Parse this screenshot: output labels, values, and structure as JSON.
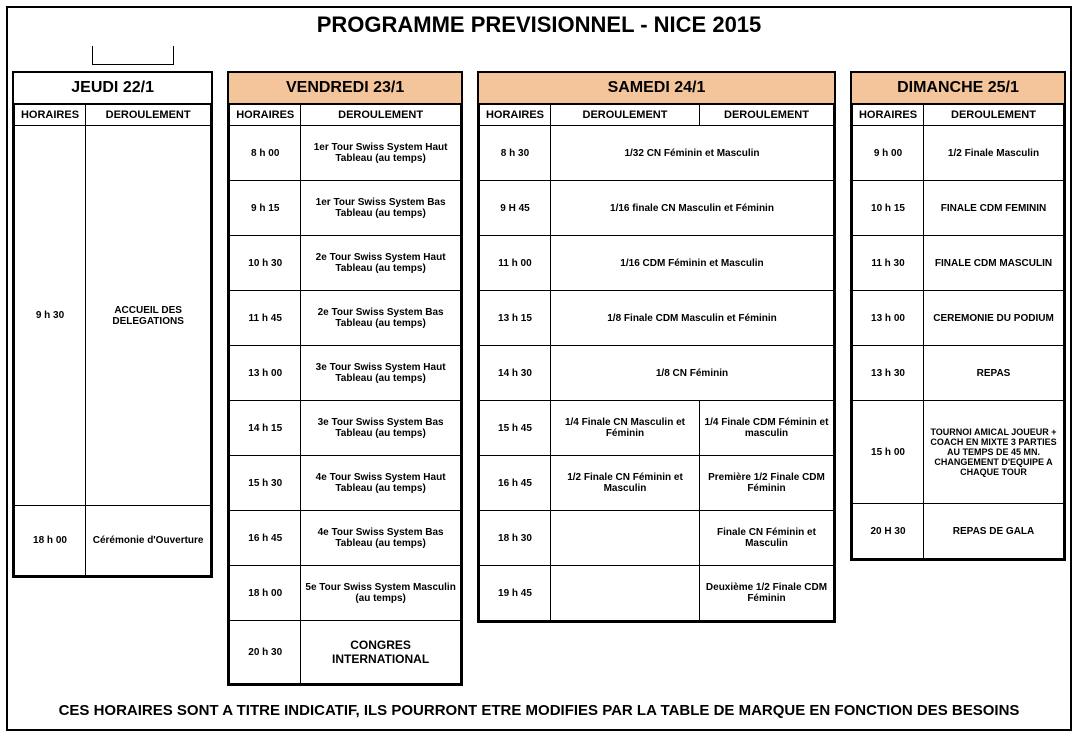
{
  "title": "PROGRAMME  PREVISIONNEL - NICE 2015",
  "columns": {
    "horaires": "HORAIRES",
    "deroulement": "DEROULEMENT"
  },
  "footer": "CES HORAIRES SONT A TITRE INDICATIF, ILS POURRONT ETRE MODIFIES PAR LA TABLE DE MARQUE EN FONCTION DES BESOINS",
  "colors": {
    "header_peach": "#f4c49a",
    "highlight_blue": "#9acbd9",
    "border": "#000000",
    "bg": "#ffffff"
  },
  "jeudi": {
    "header": "JEUDI 22/1",
    "rows": [
      {
        "time": "9 h 30",
        "text": "ACCUEIL DES DELEGATIONS"
      },
      {
        "time": "18 h 00",
        "text": "Cérémonie d'Ouverture"
      }
    ]
  },
  "vendredi": {
    "header": "VENDREDI 23/1",
    "rows": [
      {
        "time": "8 h 00",
        "text": "1er Tour Swiss System Haut Tableau (au temps)"
      },
      {
        "time": "9 h 15",
        "text": "1er Tour Swiss System Bas Tableau      (au temps)"
      },
      {
        "time": "10 h 30",
        "text": "2e Tour Swiss System Haut Tableau      (au temps)"
      },
      {
        "time": "11 h 45",
        "text": "2e Tour Swiss System Bas Tableau      (au temps)"
      },
      {
        "time": "13 h 00",
        "text": "3e Tour Swiss System Haut Tableau      (au temps)"
      },
      {
        "time": "14 h 15",
        "text": "3e Tour Swiss System Bas Tableau      (au temps)"
      },
      {
        "time": "15 h 30",
        "text": "4e Tour Swiss System Haut Tableau      (au temps)"
      },
      {
        "time": "16 h 45",
        "text": "4e Tour Swiss System Bas Tableau      (au temps)"
      },
      {
        "time": "18 h 00",
        "text": "5e Tour Swiss System Masculin      (au temps)"
      },
      {
        "time": "20 h 30",
        "text": "CONGRES INTERNATIONAL"
      }
    ]
  },
  "samedi": {
    "header": "SAMEDI 24/1",
    "rows": [
      {
        "time": "8 h 30",
        "a": "1/32  CN Féminin et Masculin",
        "span": true,
        "hl": true
      },
      {
        "time": "9 H 45",
        "a": "1/16 finale CN Masculin et Féminin",
        "span": true,
        "hl": true
      },
      {
        "time": "11 h 00",
        "a": "1/16 CDM Féminin et Masculin",
        "span": true,
        "hl": false
      },
      {
        "time": "13 h 15",
        "a": "1/8 Finale CDM Masculin et Féminin",
        "span": true,
        "hl": false
      },
      {
        "time": "14 h 30",
        "a": "1/8 CN Féminin",
        "span": true,
        "hl": true
      },
      {
        "time": "15 h 45",
        "a": "1/4 Finale CN Masculin et Féminin",
        "a_hl": true,
        "b": "1/4 Finale CDM Féminin et masculin",
        "b_hl": false
      },
      {
        "time": "16 h 45",
        "a": "1/2 Finale CN Féminin et Masculin",
        "a_hl": true,
        "b": "Première 1/2 Finale CDM Féminin",
        "b_hl": false
      },
      {
        "time": "18 h 30",
        "a": "",
        "a_hl": false,
        "b": "Finale CN Féminin et Masculin",
        "b_hl": true
      },
      {
        "time": "19 h 45",
        "a": "",
        "a_hl": false,
        "b": "Deuxième 1/2 Finale CDM Féminin",
        "b_hl": false
      }
    ]
  },
  "dimanche": {
    "header": "DIMANCHE 25/1",
    "rows": [
      {
        "time": "9 h 00",
        "text": "1/2 Finale Masculin"
      },
      {
        "time": "10 h 15",
        "text": "FINALE CDM FEMININ"
      },
      {
        "time": "11 h 30",
        "text": "FINALE CDM MASCULIN"
      },
      {
        "time": "13 h 00",
        "text": "CEREMONIE DU PODIUM"
      },
      {
        "time": "13 h 30",
        "text": "REPAS"
      },
      {
        "time": "15 h 00",
        "text": "TOURNOI AMICAL JOUEUR + COACH EN MIXTE 3 PARTIES AU TEMPS DE 45 MN. CHANGEMENT D'EQUIPE A CHAQUE TOUR"
      },
      {
        "time": "20 H 30",
        "text": "REPAS DE GALA"
      }
    ]
  }
}
